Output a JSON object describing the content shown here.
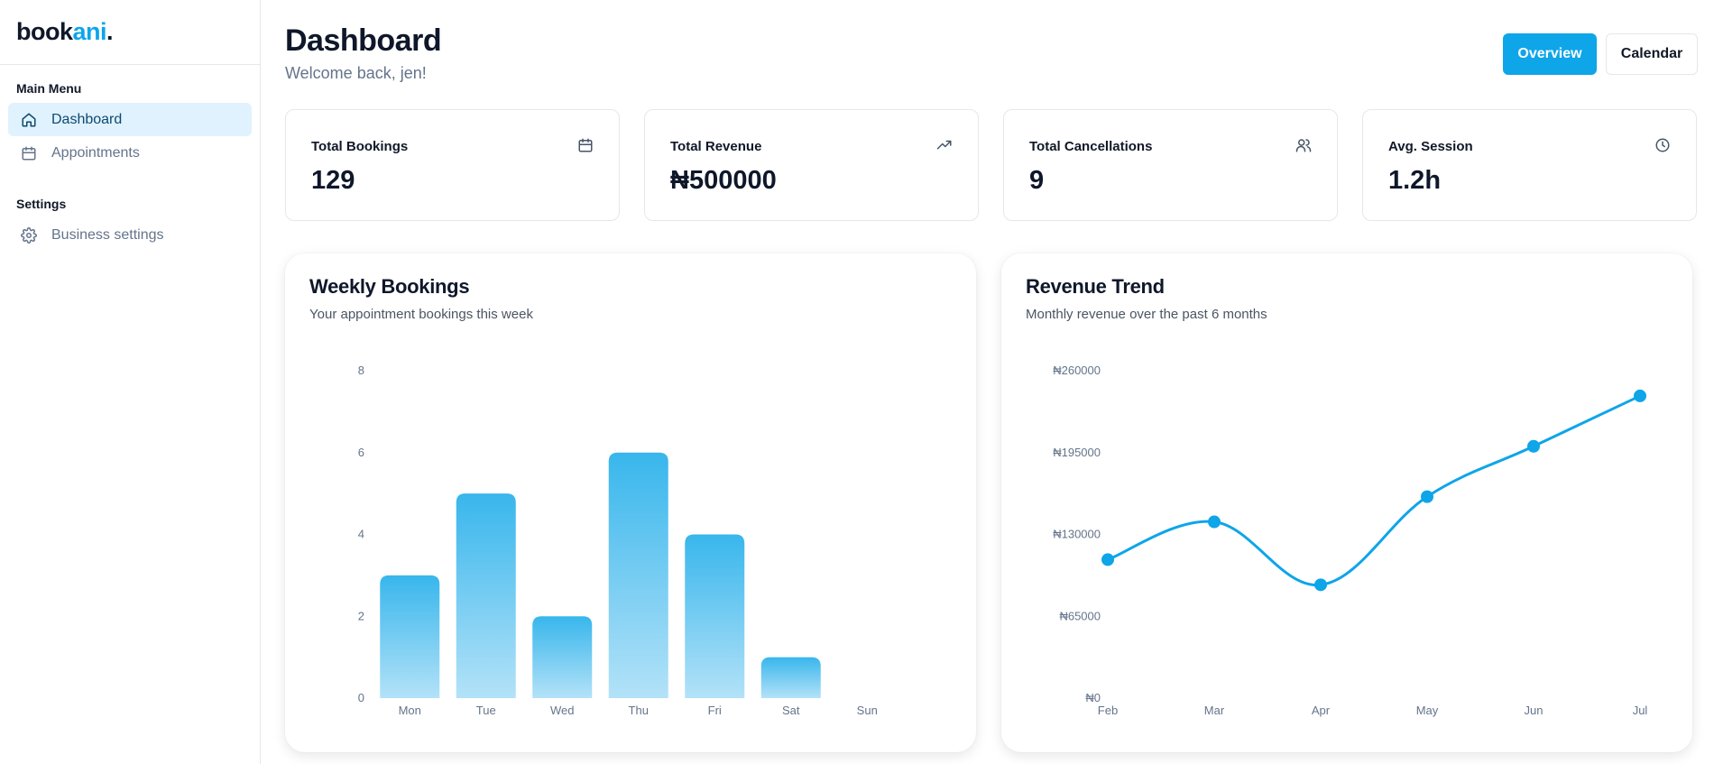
{
  "app": {
    "logo_part1": "book",
    "logo_part2": "ani",
    "logo_dot": ".",
    "accent_color": "#0ea5e9"
  },
  "sidebar": {
    "main_menu_heading": "Main Menu",
    "main_items": [
      {
        "label": "Dashboard",
        "icon": "home-icon",
        "active": true
      },
      {
        "label": "Appointments",
        "icon": "calendar-icon",
        "active": false
      }
    ],
    "settings_heading": "Settings",
    "settings_items": [
      {
        "label": "Business settings",
        "icon": "gear-icon",
        "active": false
      }
    ]
  },
  "header": {
    "title": "Dashboard",
    "subtitle": "Welcome back, jen!",
    "overview_label": "Overview",
    "calendar_label": "Calendar"
  },
  "stats": [
    {
      "label": "Total Bookings",
      "value": "129",
      "icon": "calendar-icon"
    },
    {
      "label": "Total Revenue",
      "value": "₦500000",
      "icon": "trending-up-icon"
    },
    {
      "label": "Total Cancellations",
      "value": "9",
      "icon": "users-icon"
    },
    {
      "label": "Avg. Session",
      "value": "1.2h",
      "icon": "clock-icon"
    }
  ],
  "weekly": {
    "title": "Weekly Bookings",
    "subtitle": "Your appointment bookings this week"
  },
  "revenue": {
    "title": "Revenue Trend",
    "subtitle": "Monthly revenue over the past 6 months"
  },
  "chart_data": [
    {
      "type": "bar",
      "title": "Weekly Bookings",
      "subtitle": "Your appointment bookings this week",
      "categories": [
        "Mon",
        "Tue",
        "Wed",
        "Thu",
        "Fri",
        "Sat",
        "Sun"
      ],
      "values": [
        3,
        5,
        2,
        6,
        4,
        1,
        0
      ],
      "ylim": [
        0,
        8
      ],
      "yticks": [
        "0",
        "2",
        "4",
        "6",
        "8"
      ],
      "ytick_values": [
        0,
        2,
        4,
        6,
        8
      ],
      "grid": false,
      "color": "#0ea5e9"
    },
    {
      "type": "line",
      "title": "Revenue Trend",
      "subtitle": "Monthly revenue over the past 6 months",
      "categories": [
        "Feb",
        "Mar",
        "Apr",
        "May",
        "Jun",
        "Jul"
      ],
      "values": [
        110000,
        140000,
        90000,
        160000,
        200000,
        240000
      ],
      "ylim": [
        0,
        260000
      ],
      "yticks": [
        "₦0",
        "₦65000",
        "₦130000",
        "₦195000",
        "₦260000"
      ],
      "ytick_values": [
        0,
        65000,
        130000,
        195000,
        260000
      ],
      "grid": false,
      "color": "#0ea5e9"
    }
  ]
}
